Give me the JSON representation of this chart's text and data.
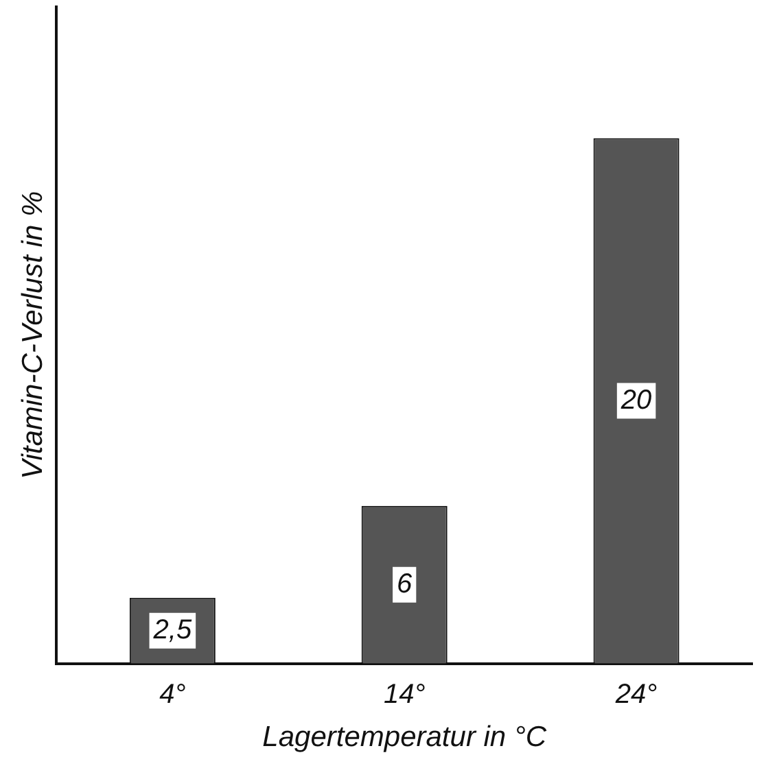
{
  "chart_data": {
    "type": "bar",
    "xlabel": "Lagertemperatur in °C",
    "ylabel": "Vitamin-C-Verlust in %",
    "categories": [
      "4°",
      "14°",
      "24°"
    ],
    "values": [
      2.5,
      6,
      20
    ],
    "color": "#555555",
    "value_labels": [
      "2,5",
      "6",
      "20"
    ],
    "grid": false,
    "legend": false
  }
}
